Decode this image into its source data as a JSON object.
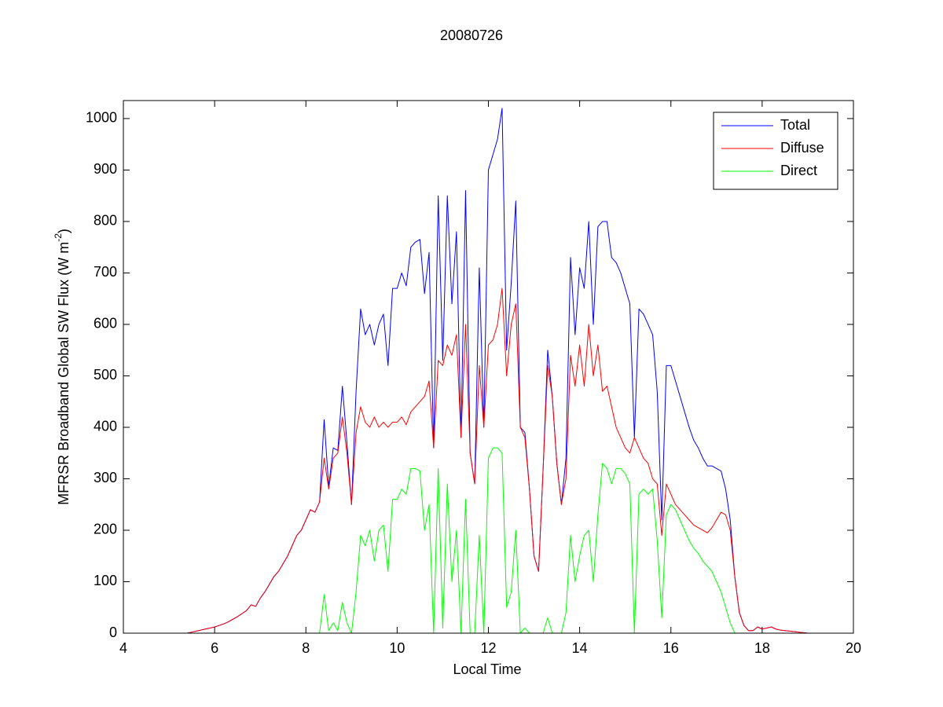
{
  "chart_data": {
    "type": "line",
    "title": "20080726",
    "xlabel": "Local Time",
    "ylabel": {
      "text": "MFRSR Broadband Global SW Flux (W m",
      "superscript": "-2",
      "end": ")"
    },
    "xlim": [
      4,
      20
    ],
    "xticks": [
      4,
      6,
      8,
      10,
      12,
      14,
      16,
      18,
      20
    ],
    "ylim": [
      0,
      1035
    ],
    "yticks": [
      0,
      100,
      200,
      300,
      400,
      500,
      600,
      700,
      800,
      900,
      1000
    ],
    "grid": false,
    "legend": "upper right",
    "x": [
      5.4,
      5.5,
      5.6,
      5.7,
      5.8,
      5.9,
      6.0,
      6.1,
      6.2,
      6.3,
      6.4,
      6.5,
      6.6,
      6.7,
      6.8,
      6.9,
      7.0,
      7.1,
      7.2,
      7.3,
      7.4,
      7.5,
      7.6,
      7.7,
      7.8,
      7.9,
      8.0,
      8.1,
      8.2,
      8.3,
      8.4,
      8.5,
      8.6,
      8.7,
      8.8,
      8.9,
      9.0,
      9.1,
      9.2,
      9.3,
      9.4,
      9.5,
      9.6,
      9.7,
      9.8,
      9.9,
      10.0,
      10.1,
      10.2,
      10.3,
      10.4,
      10.5,
      10.6,
      10.7,
      10.8,
      10.9,
      11.0,
      11.1,
      11.2,
      11.3,
      11.4,
      11.5,
      11.6,
      11.7,
      11.8,
      11.9,
      12.0,
      12.1,
      12.2,
      12.3,
      12.4,
      12.5,
      12.6,
      12.7,
      12.8,
      12.9,
      13.0,
      13.1,
      13.2,
      13.3,
      13.4,
      13.5,
      13.6,
      13.7,
      13.8,
      13.9,
      14.0,
      14.1,
      14.2,
      14.3,
      14.4,
      14.5,
      14.6,
      14.7,
      14.8,
      14.9,
      15.0,
      15.1,
      15.2,
      15.3,
      15.4,
      15.5,
      15.6,
      15.7,
      15.8,
      15.9,
      16.0,
      16.1,
      16.2,
      16.3,
      16.4,
      16.5,
      16.6,
      16.7,
      16.8,
      16.9,
      17.0,
      17.1,
      17.2,
      17.3,
      17.4,
      17.5,
      17.6,
      17.7,
      17.8,
      17.9,
      18.0,
      18.1,
      18.2,
      18.3,
      18.4,
      18.5,
      18.6,
      18.7,
      18.8,
      18.9,
      19.0,
      19.1,
      19.2
    ],
    "series": [
      {
        "name": "Total",
        "color": "#0000ff",
        "values": [
          0,
          2,
          4,
          6,
          8,
          10,
          12,
          15,
          18,
          22,
          27,
          32,
          38,
          44,
          55,
          52,
          68,
          80,
          95,
          110,
          120,
          135,
          150,
          170,
          190,
          200,
          220,
          240,
          235,
          255,
          415,
          285,
          360,
          355,
          480,
          370,
          250,
          470,
          630,
          580,
          600,
          560,
          600,
          620,
          520,
          670,
          670,
          700,
          675,
          750,
          760,
          765,
          660,
          740,
          360,
          850,
          530,
          850,
          640,
          780,
          380,
          860,
          350,
          290,
          710,
          400,
          900,
          930,
          960,
          1020,
          550,
          680,
          840,
          400,
          390,
          280,
          150,
          120,
          320,
          550,
          460,
          330,
          250,
          340,
          730,
          580,
          710,
          670,
          800,
          600,
          790,
          800,
          800,
          730,
          720,
          700,
          670,
          640,
          380,
          630,
          620,
          600,
          580,
          470,
          220,
          520,
          520,
          490,
          460,
          430,
          400,
          375,
          360,
          340,
          325,
          325,
          320,
          315,
          280,
          220,
          110,
          40,
          15,
          5,
          5,
          12,
          8,
          10,
          12,
          8,
          6,
          5,
          4,
          3,
          2,
          1,
          0,
          0,
          0
        ]
      },
      {
        "name": "Diffuse",
        "color": "#ff0000",
        "values": [
          0,
          2,
          4,
          6,
          8,
          10,
          12,
          15,
          18,
          22,
          27,
          32,
          38,
          44,
          55,
          52,
          68,
          80,
          95,
          110,
          120,
          135,
          150,
          170,
          190,
          200,
          220,
          240,
          235,
          255,
          340,
          280,
          340,
          350,
          420,
          350,
          250,
          390,
          440,
          410,
          400,
          420,
          400,
          410,
          400,
          410,
          410,
          420,
          405,
          430,
          440,
          450,
          460,
          490,
          360,
          530,
          520,
          560,
          540,
          580,
          380,
          600,
          350,
          290,
          520,
          400,
          560,
          570,
          600,
          670,
          500,
          600,
          640,
          400,
          380,
          280,
          150,
          120,
          320,
          520,
          460,
          330,
          250,
          300,
          540,
          480,
          560,
          480,
          600,
          500,
          560,
          470,
          480,
          440,
          400,
          380,
          360,
          350,
          380,
          360,
          340,
          330,
          300,
          290,
          190,
          290,
          270,
          250,
          240,
          230,
          220,
          210,
          205,
          200,
          195,
          205,
          220,
          235,
          230,
          200,
          110,
          40,
          15,
          5,
          5,
          12,
          8,
          10,
          12,
          8,
          6,
          5,
          4,
          3,
          2,
          1,
          0,
          0,
          0
        ]
      },
      {
        "name": "Direct",
        "color": "#00ff00",
        "values": [
          0,
          0,
          0,
          0,
          0,
          0,
          0,
          0,
          0,
          0,
          0,
          0,
          0,
          0,
          0,
          0,
          0,
          0,
          0,
          0,
          0,
          0,
          0,
          0,
          0,
          0,
          0,
          0,
          0,
          0,
          75,
          5,
          20,
          5,
          60,
          20,
          0,
          80,
          190,
          170,
          200,
          140,
          200,
          210,
          120,
          260,
          260,
          280,
          270,
          320,
          320,
          315,
          200,
          250,
          0,
          320,
          10,
          290,
          100,
          200,
          0,
          260,
          0,
          0,
          190,
          0,
          340,
          360,
          360,
          350,
          50,
          80,
          200,
          0,
          10,
          0,
          0,
          0,
          0,
          30,
          0,
          0,
          0,
          40,
          190,
          100,
          150,
          190,
          200,
          100,
          230,
          330,
          320,
          290,
          320,
          320,
          310,
          290,
          0,
          270,
          280,
          270,
          280,
          180,
          30,
          230,
          250,
          240,
          220,
          200,
          180,
          165,
          155,
          140,
          130,
          120,
          100,
          80,
          50,
          20,
          0,
          0,
          0,
          0,
          0,
          0,
          0,
          0,
          0,
          0,
          0,
          0,
          0,
          0,
          0,
          0,
          0,
          0,
          0
        ]
      }
    ]
  }
}
